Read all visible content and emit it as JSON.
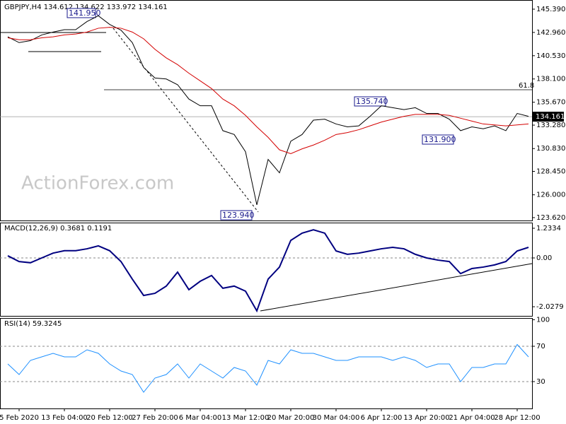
{
  "chart_data": [
    {
      "type": "line",
      "title": "GBPJPY,H4  134.612 134.622 133.972 134.161",
      "ylim": [
        123.32,
        146.2
      ],
      "yticks": [
        {
          "value": 145.39,
          "label": "145.390"
        },
        {
          "value": 142.96,
          "label": "142.960"
        },
        {
          "value": 140.53,
          "label": "140.530"
        },
        {
          "value": 138.1,
          "label": "138.100"
        },
        {
          "value": 135.67,
          "label": "135.670"
        },
        {
          "value": 133.28,
          "label": "133.280"
        },
        {
          "value": 130.83,
          "label": "130.830"
        },
        {
          "value": 128.45,
          "label": "128.450"
        },
        {
          "value": 126,
          "label": "126.000"
        },
        {
          "value": 123.62,
          "label": "123.620"
        }
      ],
      "current_price": 134.161,
      "annotations": [
        "141.950",
        "135.740",
        "131.900",
        "123.940",
        "61.8"
      ],
      "watermark": "ActionForex.com",
      "series": [
        {
          "color": "#000000",
          "values": [
            142.5,
            141.9,
            142.1,
            142.7,
            143.0,
            143.25,
            143.25,
            144.1,
            144.7,
            143.8,
            143.2,
            141.9,
            139.3,
            138.2,
            138.1,
            137.5,
            136.0,
            135.3,
            135.3,
            132.7,
            132.3,
            130.5,
            124.95,
            129.7,
            128.3,
            131.6,
            132.3,
            133.8,
            133.9,
            133.4,
            133.1,
            133.2,
            134.2,
            135.3,
            135.1,
            134.9,
            135.1,
            134.5,
            134.5,
            133.9,
            132.7,
            133.1,
            132.9,
            133.2,
            132.7,
            134.5,
            134.2
          ]
        },
        {
          "color": "#d40000",
          "values": [
            142.4,
            142.2,
            142.2,
            142.4,
            142.5,
            142.7,
            142.8,
            143.0,
            143.4,
            143.5,
            143.4,
            143.0,
            142.3,
            141.2,
            140.3,
            139.6,
            138.7,
            137.9,
            137.1,
            136.0,
            135.3,
            134.3,
            133.1,
            132.0,
            130.7,
            130.3,
            130.8,
            131.2,
            131.7,
            132.3,
            132.5,
            132.8,
            133.2,
            133.6,
            133.9,
            134.2,
            134.4,
            134.4,
            134.4,
            134.3,
            134.0,
            133.7,
            133.4,
            133.3,
            133.2,
            133.3,
            133.4
          ]
        }
      ]
    },
    {
      "type": "line",
      "title": "MACD(12,26,9) 0.3681 0.1191",
      "ylim": [
        -2.408,
        1.468
      ],
      "yticks": [
        1.2334,
        {
          "value": 0,
          "label": "0.00"
        },
        -2.0279
      ],
      "series": [
        {
          "color": "#000080",
          "values": [
            0.09,
            -0.15,
            -0.2,
            0,
            0.2,
            0.3,
            0.3,
            0.38,
            0.5,
            0.3,
            -0.15,
            -0.88,
            -1.56,
            -1.47,
            -1.17,
            -0.59,
            -1.32,
            -0.97,
            -0.73,
            -1.26,
            -1.17,
            -1.38,
            -2.2,
            -0.88,
            -0.38,
            0.73,
            1.03,
            1.17,
            1.03,
            0.29,
            0.15,
            0.2,
            0.29,
            0.38,
            0.44,
            0.38,
            0.15,
            0,
            -0.09,
            -0.15,
            -0.65,
            -0.44,
            -0.38,
            -0.29,
            -0.15,
            0.29,
            0.44
          ]
        }
      ]
    },
    {
      "type": "line",
      "title": "RSI(14) 59.3245",
      "ylim": [
        0,
        100
      ],
      "yticks": [
        100,
        70,
        30
      ],
      "categories": [
        null,
        "5 Feb 2020",
        null,
        null,
        null,
        "13 Feb 04:00",
        null,
        null,
        null,
        "20 Feb 12:00",
        null,
        null,
        null,
        "27 Feb 20:00",
        null,
        null,
        null,
        "6 Mar 04:00",
        null,
        null,
        null,
        "13 Mar 12:00",
        null,
        null,
        null,
        "20 Mar 20:00",
        null,
        null,
        null,
        "30 Mar 04:00",
        null,
        null,
        null,
        "6 Apr 12:00",
        null,
        null,
        null,
        "13 Apr 20:00",
        null,
        null,
        null,
        "21 Apr 04:00",
        null,
        null,
        null,
        "28 Apr 12:00",
        null
      ],
      "series": [
        {
          "color": "#1e90ff",
          "values": [
            50,
            38,
            54,
            58,
            62,
            58,
            58,
            66,
            62,
            50,
            42,
            38,
            18,
            34,
            38,
            50,
            34,
            50,
            42,
            34,
            46,
            42,
            26,
            54,
            50,
            66,
            62,
            62,
            58,
            54,
            54,
            58,
            58,
            58,
            54,
            58,
            54,
            46,
            50,
            50,
            30,
            46,
            46,
            50,
            50,
            72,
            58
          ]
        }
      ]
    }
  ]
}
